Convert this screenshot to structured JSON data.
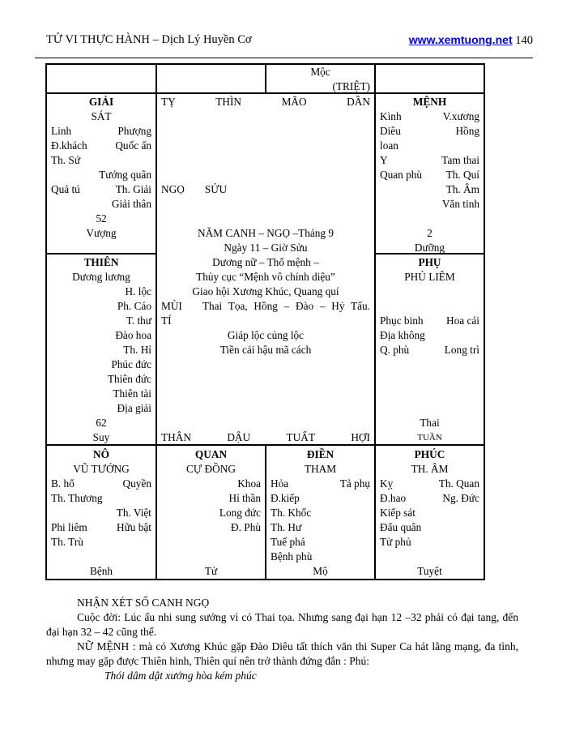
{
  "header": {
    "title": "TỬ VI THỰC HÀNH – Dịch Lý Huyền Cơ",
    "link": "www.xemtuong.net",
    "page_number": "140"
  },
  "table": {
    "top1": [],
    "top2": [],
    "top3": [
      {
        "c": "Mộc"
      },
      {
        "r": "(TRIỆT)"
      }
    ],
    "top4": [],
    "giai": [
      {
        "c": "GIẢI",
        "b": 1
      },
      {
        "c": "SÁT"
      },
      {
        "l": "Linh",
        "r": "Phượng"
      },
      {
        "l": "Đ.khách",
        "r": "Quốc ấn"
      },
      {
        "l": "Th. Sứ"
      },
      {
        "r": "Tướng quân"
      },
      {
        "l": "Quả tú",
        "r": "Th. Giải"
      },
      {
        "r": "Giải thân"
      },
      {
        "c": "52"
      },
      {
        "c": "Vượng"
      }
    ],
    "menh": [
      {
        "c": "MỆNH",
        "b": 1
      },
      {
        "l": "Kình",
        "r": "V.xương"
      },
      {
        "l": "Diêu",
        "r": "Hồng"
      },
      {
        "l": "loan"
      },
      {
        "l": "Y",
        "r": "Tam thai"
      },
      {
        "l": "Quan phù",
        "r": "Th. Quí"
      },
      {
        "r": "Th. Âm"
      },
      {
        "r": "Văn tinh"
      },
      {},
      {
        "c": "2"
      },
      {
        "c": "Dưỡng"
      }
    ],
    "thien": [
      {
        "c": "THIÊN",
        "b": 1
      },
      {
        "c": "Dương lương"
      },
      {
        "r": "H. lộc"
      },
      {
        "r": "Ph. Cáo"
      },
      {
        "r": "T. thư"
      },
      {
        "r": "Đào hoa"
      },
      {
        "r": "Th. Hỉ"
      },
      {
        "r": "Phúc đức"
      },
      {
        "r": "Thiên đức"
      },
      {
        "r": "Thiên tài"
      },
      {
        "r": "Địa giải"
      },
      {
        "c": "62"
      },
      {
        "c": "Suy"
      }
    ],
    "phu": [
      {
        "c": "PHỤ",
        "b": 1
      },
      {
        "c": "PHỦ LIÊM"
      },
      {},
      {},
      {
        "l": "Phục binh",
        "r": "Hoa cái"
      },
      {
        "l": "Địa không"
      },
      {
        "l": "Q. phù",
        "r": "Long trì"
      },
      {},
      {},
      {},
      {},
      {
        "c": "Thai"
      },
      {
        "c": "TUẦN",
        "sm": 1
      }
    ],
    "center": [
      {
        "s": [
          "TỴ",
          "THÌN",
          "MÃO",
          "DẦN"
        ]
      },
      {},
      {},
      {},
      {},
      {},
      {
        "l": "NGỌ",
        "r": "SỬU"
      },
      {},
      {},
      {
        "c": "NĂM CANH – NGỌ –Tháng 9"
      },
      {
        "c": "Ngày 11 – Giờ Sửu"
      },
      {
        "c": "Dương nữ – Thổ mệnh –"
      },
      {
        "c": "Thủy cục “Mệnh vô chính diệu”"
      },
      {
        "c": "Giao hội Xương Khúc, Quang quí"
      },
      {
        "l": "MÙI",
        "r": "Thai Tọa, Hồng – Đào – Hỷ Tấu."
      },
      {
        "l": "TÍ"
      },
      {
        "c": "Giáp lộc củng lộc"
      },
      {
        "c": "Tiền cái hậu mã cách"
      },
      {},
      {},
      {},
      {},
      {},
      {
        "s": [
          "THÂN",
          "DẬU",
          "TUẤT",
          "HỢI"
        ]
      }
    ],
    "no": [
      {
        "c": "NÔ",
        "b": 1
      },
      {
        "c": "VŨ TƯỚNG"
      },
      {
        "l": "B. hổ",
        "r": "Quyền"
      },
      {
        "l": "Th. Thương"
      },
      {
        "r": "Th. Việt"
      },
      {
        "l": "Phi liêm",
        "r": "Hữu bật"
      },
      {
        "l": "Th. Trù"
      },
      {},
      {
        "c": "Bệnh"
      }
    ],
    "quan": [
      {
        "c": "QUAN",
        "b": 1
      },
      {
        "c": "CỰ ĐỒNG"
      },
      {
        "r": "Khoa"
      },
      {
        "r": "Hỉ thần"
      },
      {
        "r": "Long đức"
      },
      {
        "r": "Đ. Phù"
      },
      {},
      {},
      {
        "c": "Tử"
      }
    ],
    "dien": [
      {
        "c": "ĐIỀN",
        "b": 1
      },
      {
        "c": "THAM"
      },
      {
        "l": "Hỏa",
        "r": "Tả phụ"
      },
      {
        "l": "Đ.kiếp"
      },
      {
        "l": "Th. Khốc"
      },
      {
        "l": "Th. Hư"
      },
      {
        "l": "Tuế phá"
      },
      {
        "l": "Bệnh phù"
      },
      {
        "c": "Mộ"
      }
    ],
    "phuc": [
      {
        "c": "PHÚC",
        "b": 1
      },
      {
        "c": "TH. ÂM"
      },
      {
        "l": "Kỵ",
        "r": "Th. Quan"
      },
      {
        "l": "Đ.hao",
        "r": "Ng. Đức"
      },
      {
        "l": "Kiếp sát"
      },
      {
        "l": "Đẩu quân"
      },
      {
        "l": "Tử phủ"
      },
      {},
      {
        "c": "Tuyệt"
      }
    ]
  },
  "commentary": {
    "heading": "NHẬN XÉT SỐ CANH NGỌ",
    "p1": "Cuộc đời: Lúc ấu nhi sung sướng vì có Thai tọa. Nhưng sang đại hạn 12 –32  phải có đại tang, đến đại hạn 32 – 42 cũng thế.",
    "p2": "NỮ MỆNH : mà có Xương Khúc gặp Đào Diêu tất thích văn thi Super Ca hát lãng mạng, đa tình, nhưng may gặp được Thiên hinh, Thiên quí nên trở thành đứng đắn : Phú:",
    "quote": "Thói dâm dật xướng hòa kém phúc"
  }
}
